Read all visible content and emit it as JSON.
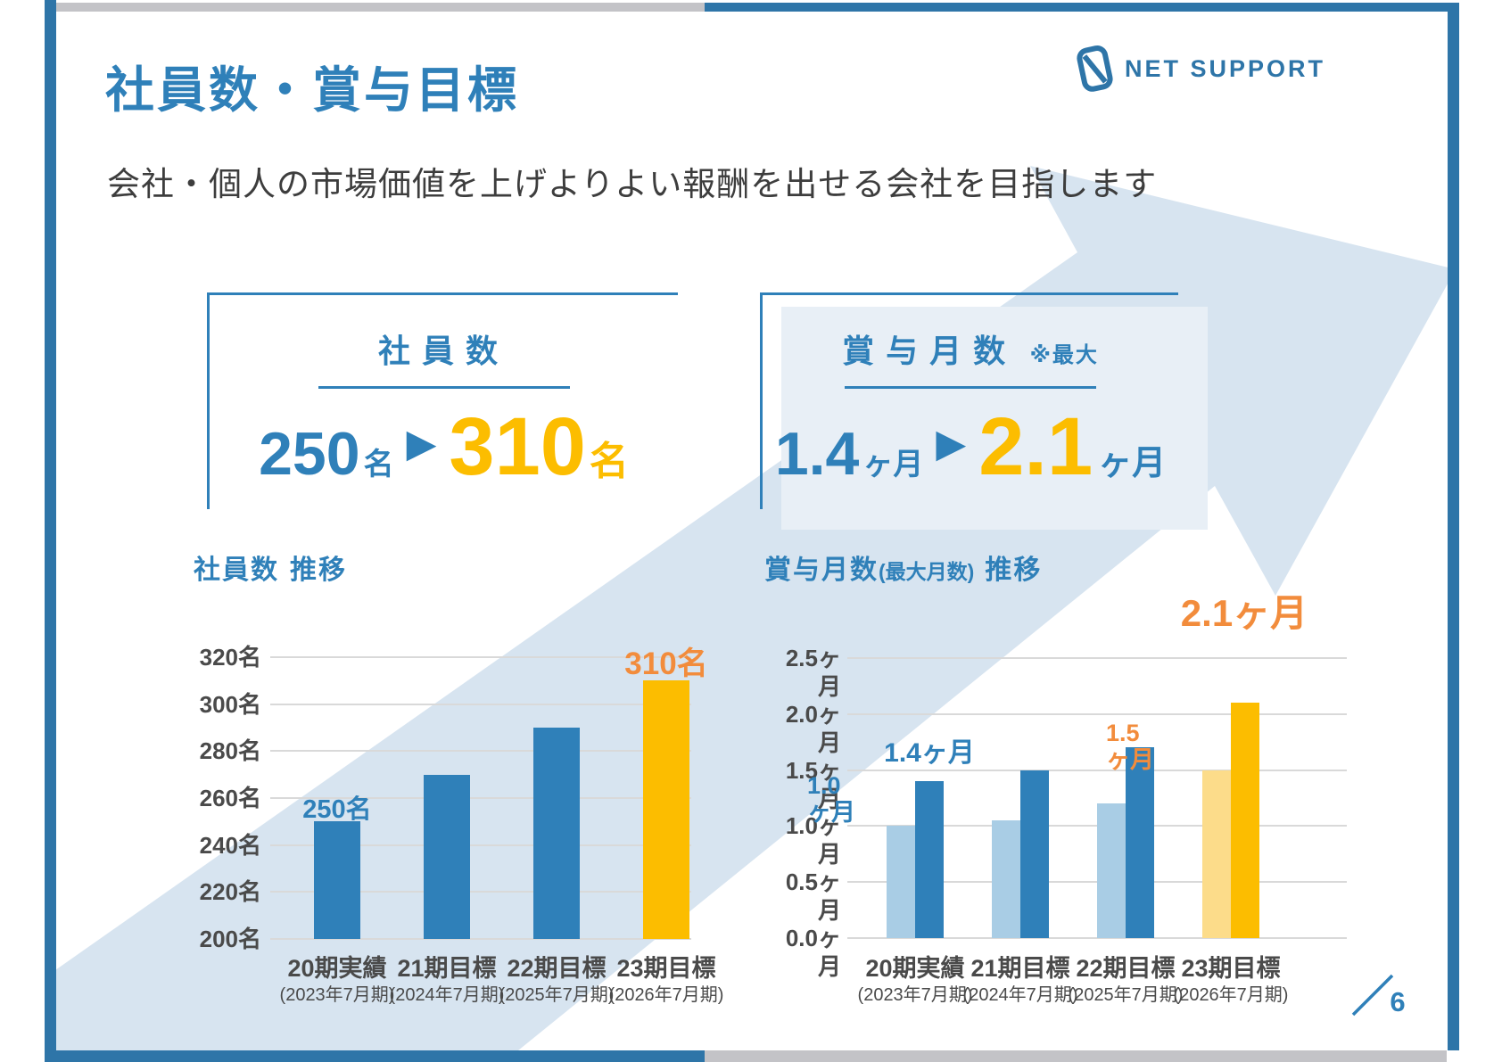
{
  "header": {
    "title": "社員数・賞与目標",
    "subtitle": "会社・個人の市場価値を上げよりよい報酬を出せる会社を目指します"
  },
  "logo": {
    "text": "NET SUPPORT"
  },
  "icons": {
    "arrow_right": "▶"
  },
  "page": {
    "number": "6"
  },
  "cards": {
    "employees": {
      "heading": "社員数",
      "from_value": "250",
      "from_unit": "名",
      "to_value": "310",
      "to_unit": "名"
    },
    "bonus": {
      "heading": "賞与月数",
      "note": "※最大",
      "from_value": "1.4",
      "from_unit": "ヶ月",
      "to_value": "2.1",
      "to_unit": "ヶ月"
    }
  },
  "colors": {
    "accent_blue": "#2f80b9",
    "frame_blue": "#2e75a8",
    "frame_gray": "#c3c3c7",
    "bar_blue": "#2f80b9",
    "bar_light_blue": "#a9cde5",
    "bar_yellow": "#fcbd00",
    "bar_light_yellow": "#fcdc8a",
    "orange_label": "#f28c3c",
    "arrow_fill": "#d7e4f0",
    "panel_fill": "#e8eff6",
    "grid_gray": "#d9d9d9",
    "axis_text": "#4a4a4a"
  },
  "chart_data": [
    {
      "type": "bar",
      "title": "社員数 推移",
      "title_main": "社員数",
      "title_note": "",
      "title_suffix": "推移",
      "categories": [
        "20期実績",
        "21期目標",
        "22期目標",
        "23期目標"
      ],
      "category_periods": [
        "(2023年7月期)",
        "(2024年7月期)",
        "(2025年7月期)",
        "(2026年7月期)"
      ],
      "values": [
        250,
        270,
        290,
        310
      ],
      "bar_colors": [
        "#2f80b9",
        "#2f80b9",
        "#2f80b9",
        "#fcbd00"
      ],
      "ylim": [
        200,
        320
      ],
      "ytick_step": 20,
      "ytick_labels": [
        "200名",
        "220名",
        "240名",
        "260名",
        "280名",
        "300名",
        "320名"
      ],
      "grid": true,
      "legend": "none",
      "annotations": [
        {
          "text": "250名",
          "target": "20期実績",
          "color": "#2f80b9"
        },
        {
          "text": "310名",
          "target": "23期目標",
          "color": "#f28c3c"
        }
      ]
    },
    {
      "type": "grouped-bar",
      "title": "賞与月数(最大月数) 推移",
      "title_main": "賞与月数",
      "title_note": "(最大月数)",
      "title_suffix": "推移",
      "categories": [
        "20期実績",
        "21期目標",
        "22期目標",
        "23期目標"
      ],
      "category_periods": [
        "(2023年7月期)",
        "(2024年7月期)",
        "(2025年7月期)",
        "(2026年7月期)"
      ],
      "series": [
        {
          "values": [
            1.0,
            1.05,
            1.2,
            1.5
          ],
          "colors": [
            "#a9cde5",
            "#a9cde5",
            "#a9cde5",
            "#fcdc8a"
          ]
        },
        {
          "values": [
            1.4,
            1.5,
            1.7,
            2.1
          ],
          "colors": [
            "#2f80b9",
            "#2f80b9",
            "#2f80b9",
            "#fcbd00"
          ]
        }
      ],
      "ylim": [
        0,
        2.5
      ],
      "ytick_step": 0.5,
      "ytick_labels": [
        "0.0ヶ月",
        "0.5ヶ月",
        "1.0ヶ月",
        "1.5ヶ月",
        "2.0ヶ月",
        "2.5ヶ月"
      ],
      "grid": true,
      "legend": "none",
      "annotations": [
        {
          "text": "1.0\nヶ月",
          "target": "20期実績",
          "color": "#2f80b9"
        },
        {
          "text": "1.4ヶ月",
          "target": "20期実績",
          "color": "#2f80b9"
        },
        {
          "text": "1.5\nヶ月",
          "target": "23期目標",
          "color": "#f28c3c"
        },
        {
          "text": "2.1ヶ月",
          "target": "23期目標",
          "color": "#f28c3c"
        }
      ]
    }
  ]
}
